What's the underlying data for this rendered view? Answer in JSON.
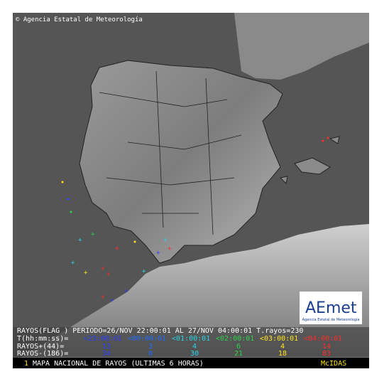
{
  "header": {
    "copyright": "© Agencia Estatal de Meteorología"
  },
  "logo": {
    "name": "AEmet",
    "subtitle": "Agencia Estatal de Meteorología"
  },
  "legend": {
    "title": "RAYOS(FLAG ) PERIODO=26/NOV 22:00:01 AL 27/NOV 04:00:01  T.rayos=230",
    "time_label": "T(hh:mm:ss)=",
    "bins": [
      {
        "label": "<23:00:01",
        "color": "#2a3cff"
      },
      {
        "label": "<00:00:01",
        "color": "#1e6bff"
      },
      {
        "label": "<01:00:01",
        "color": "#27d3e6"
      },
      {
        "label": "<02:00:01",
        "color": "#2fd14b"
      },
      {
        "label": "<03:00:01",
        "color": "#ffe21a"
      },
      {
        "label": "<04:00:01",
        "color": "#ff2a2a"
      }
    ],
    "rows": [
      {
        "label": "RAYOS+(44)=",
        "values": [
          "13",
          "3",
          "4",
          "6",
          "4",
          "14"
        ]
      },
      {
        "label": "RAYOS-(186)=",
        "values": [
          "34",
          "0",
          "30",
          "21",
          "18",
          "83"
        ]
      }
    ]
  },
  "footer": {
    "number": "1",
    "title": "MAPA NACIONAL DE RAYOS (ULTIMAS 6 HORAS)",
    "system": "McIDAS"
  }
}
